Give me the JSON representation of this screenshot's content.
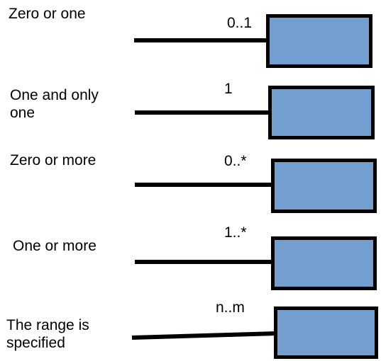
{
  "colors": {
    "box_fill": "#729fcf",
    "stroke": "#000000",
    "text": "#000000"
  },
  "rows": [
    {
      "label": "Zero or one",
      "multiplicity": "0..1"
    },
    {
      "label": "One and only\none",
      "multiplicity": "1"
    },
    {
      "label": "Zero or more",
      "multiplicity": "0..*"
    },
    {
      "label": "One or more",
      "multiplicity": "1..*"
    },
    {
      "label": "The range is\nspecified",
      "multiplicity": "n..m"
    }
  ]
}
